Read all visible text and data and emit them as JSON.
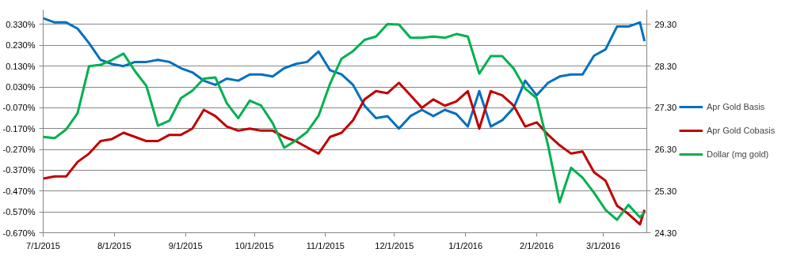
{
  "chart_data": {
    "type": "line",
    "x": [
      "2015-07-01",
      "2015-07-06",
      "2015-07-11",
      "2015-07-16",
      "2015-07-21",
      "2015-07-26",
      "2015-07-31",
      "2015-08-05",
      "2015-08-10",
      "2015-08-15",
      "2015-08-20",
      "2015-08-25",
      "2015-08-30",
      "2015-09-04",
      "2015-09-09",
      "2015-09-14",
      "2015-09-19",
      "2015-09-24",
      "2015-09-29",
      "2015-10-04",
      "2015-10-09",
      "2015-10-14",
      "2015-10-19",
      "2015-10-24",
      "2015-10-29",
      "2015-11-03",
      "2015-11-08",
      "2015-11-13",
      "2015-11-18",
      "2015-11-23",
      "2015-11-28",
      "2015-12-03",
      "2015-12-08",
      "2015-12-13",
      "2015-12-18",
      "2015-12-23",
      "2015-12-28",
      "2016-01-02",
      "2016-01-07",
      "2016-01-12",
      "2016-01-17",
      "2016-01-22",
      "2016-01-27",
      "2016-02-01",
      "2016-02-06",
      "2016-02-11",
      "2016-02-16",
      "2016-02-21",
      "2016-02-26",
      "2016-03-02",
      "2016-03-07",
      "2016-03-12",
      "2016-03-17",
      "2016-03-19"
    ],
    "series": [
      {
        "name": "Apr Gold Basis",
        "color": "#0070c0",
        "values": [
          0.36,
          0.34,
          0.34,
          0.31,
          0.24,
          0.16,
          0.14,
          0.13,
          0.15,
          0.15,
          0.16,
          0.15,
          0.12,
          0.1,
          0.06,
          0.04,
          0.07,
          0.06,
          0.09,
          0.09,
          0.08,
          0.12,
          0.14,
          0.15,
          0.2,
          0.11,
          0.09,
          0.04,
          -0.06,
          -0.12,
          -0.11,
          -0.17,
          -0.11,
          -0.08,
          -0.11,
          -0.08,
          -0.1,
          -0.16,
          0.01,
          -0.16,
          -0.13,
          -0.07,
          0.06,
          -0.01,
          0.05,
          0.08,
          0.09,
          0.09,
          0.18,
          0.21,
          0.32,
          0.32,
          0.34,
          0.25
        ]
      },
      {
        "name": "Apr Gold Cobasis",
        "color": "#c00000",
        "values": [
          -0.41,
          -0.4,
          -0.4,
          -0.33,
          -0.29,
          -0.23,
          -0.22,
          -0.19,
          -0.21,
          -0.23,
          -0.23,
          -0.2,
          -0.2,
          -0.17,
          -0.08,
          -0.11,
          -0.16,
          -0.18,
          -0.17,
          -0.18,
          -0.18,
          -0.21,
          -0.23,
          -0.26,
          -0.29,
          -0.21,
          -0.19,
          -0.13,
          -0.03,
          0.01,
          0.0,
          0.05,
          -0.01,
          -0.07,
          -0.03,
          -0.06,
          -0.04,
          0.01,
          -0.17,
          0.01,
          -0.01,
          -0.06,
          -0.16,
          -0.14,
          -0.2,
          -0.25,
          -0.29,
          -0.28,
          -0.38,
          -0.42,
          -0.54,
          -0.58,
          -0.63,
          -0.56
        ]
      },
      {
        "name": "Dollar (mg gold)",
        "color": "#00b050",
        "axis": "y2",
        "values": [
          26.6,
          26.57,
          26.78,
          27.17,
          28.3,
          28.33,
          28.45,
          28.6,
          28.18,
          27.82,
          26.87,
          26.99,
          27.53,
          27.71,
          28.0,
          28.03,
          27.41,
          27.05,
          27.47,
          27.35,
          26.93,
          26.34,
          26.51,
          26.72,
          27.11,
          27.88,
          28.48,
          28.66,
          28.93,
          29.01,
          29.31,
          29.3,
          28.98,
          28.98,
          29.01,
          28.98,
          29.07,
          29.01,
          28.12,
          28.54,
          28.54,
          28.24,
          27.76,
          27.53,
          26.39,
          25.03,
          25.86,
          25.62,
          25.26,
          24.85,
          24.61,
          24.97,
          24.67,
          24.79
        ]
      }
    ],
    "xlim": [
      "2015-07-01",
      "2016-03-20"
    ],
    "xticks": [
      {
        "value": "2015-07-01",
        "label": "7/1/2015"
      },
      {
        "value": "2015-08-01",
        "label": "8/1/2015"
      },
      {
        "value": "2015-09-01",
        "label": "9/1/2015"
      },
      {
        "value": "2015-10-01",
        "label": "10/1/2015"
      },
      {
        "value": "2015-11-01",
        "label": "11/1/2015"
      },
      {
        "value": "2015-12-01",
        "label": "12/1/2015"
      },
      {
        "value": "2016-01-01",
        "label": "1/1/2016"
      },
      {
        "value": "2016-02-01",
        "label": "2/1/2016"
      },
      {
        "value": "2016-03-01",
        "label": "3/1/2016"
      }
    ],
    "ylim": [
      -0.67,
      0.4
    ],
    "yticks": [
      {
        "value": 0.33,
        "label": "0.330%"
      },
      {
        "value": 0.23,
        "label": "0.230%"
      },
      {
        "value": 0.13,
        "label": "0.130%"
      },
      {
        "value": 0.03,
        "label": "0.030%"
      },
      {
        "value": -0.07,
        "label": "-0.070%"
      },
      {
        "value": -0.17,
        "label": "-0.170%"
      },
      {
        "value": -0.27,
        "label": "-0.270%"
      },
      {
        "value": -0.37,
        "label": "-0.370%"
      },
      {
        "value": -0.47,
        "label": "-0.470%"
      },
      {
        "value": -0.57,
        "label": "-0.570%"
      },
      {
        "value": -0.67,
        "label": "-0.670%"
      }
    ],
    "y2lim": [
      24.3,
      29.65
    ],
    "y2ticks": [
      {
        "value": 29.3,
        "label": "29.30"
      },
      {
        "value": 28.3,
        "label": "28.30"
      },
      {
        "value": 27.3,
        "label": "27.30"
      },
      {
        "value": 26.3,
        "label": "26.30"
      },
      {
        "value": 25.3,
        "label": "25.30"
      },
      {
        "value": 24.3,
        "label": "24.30"
      }
    ],
    "grid": "y",
    "legend": "right"
  }
}
